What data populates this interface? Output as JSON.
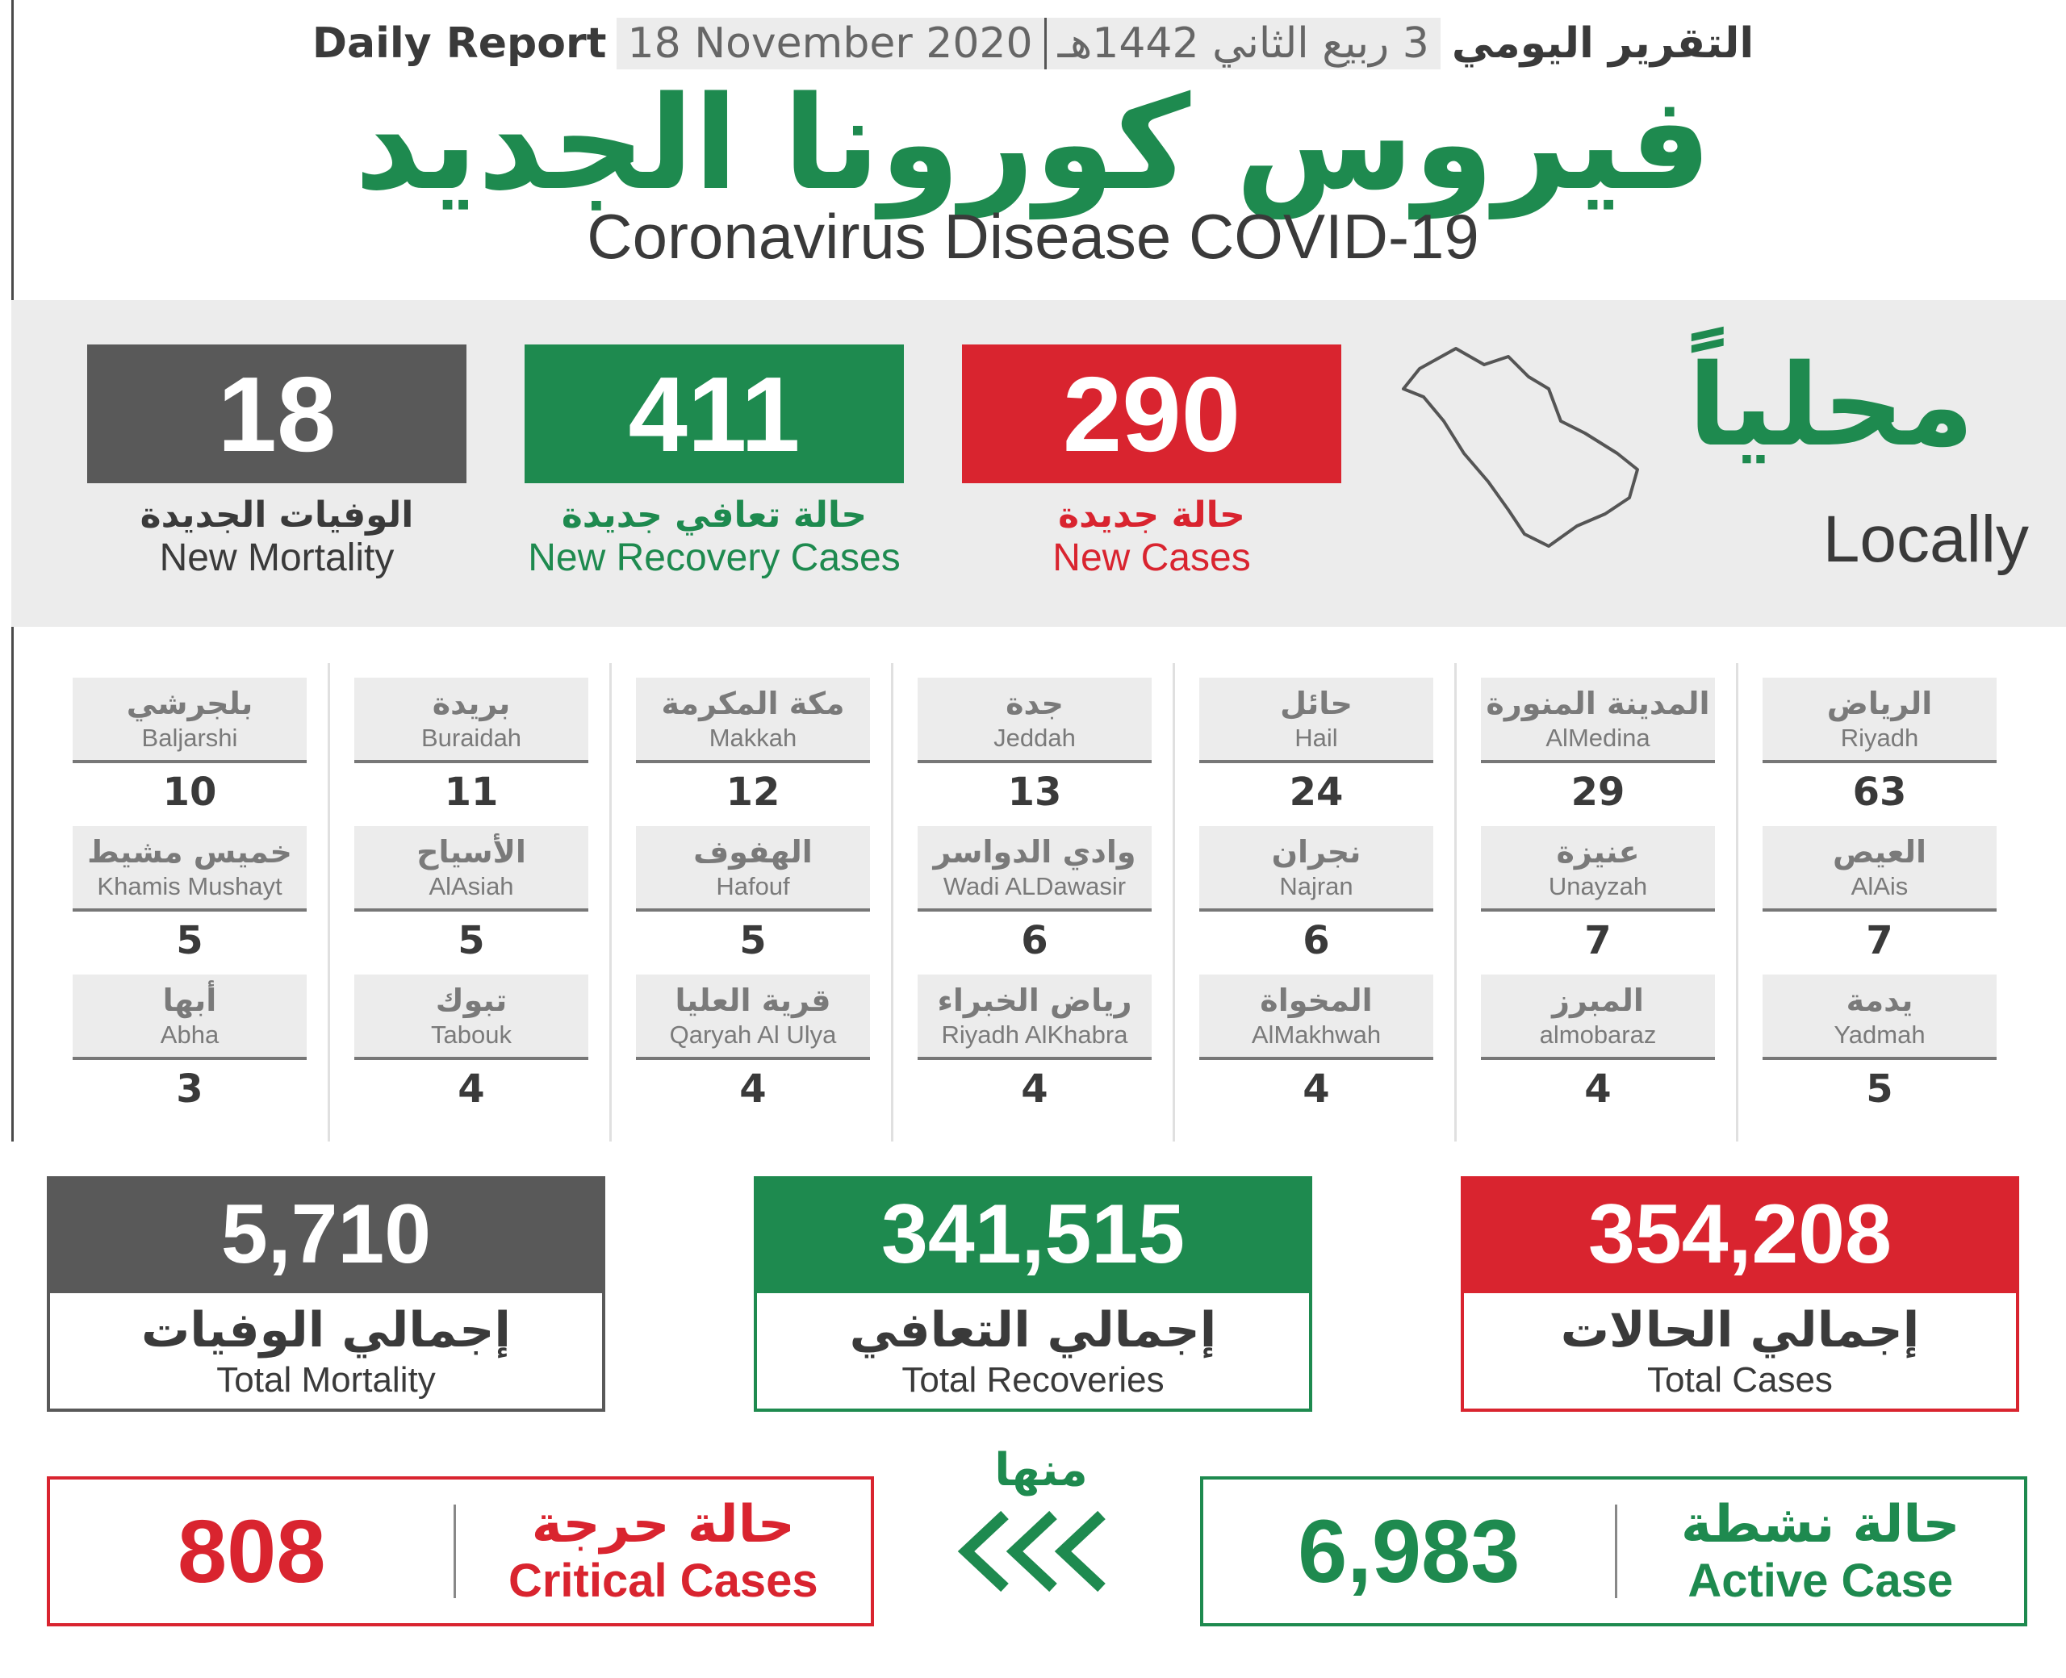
{
  "colors": {
    "red": "#d9242f",
    "green": "#1e8a4f",
    "gray": "#595959",
    "light_gray": "#ececec"
  },
  "header": {
    "english_label": "Daily Report",
    "gregorian_date": "18 November 2020",
    "hijri_date": "3 ربيع الثاني 1442هـ",
    "arabic_label": "التقرير اليومي",
    "title_ar": "فيروس كورونا الجديد",
    "title_en": "Coronavirus Disease COVID-19"
  },
  "locally": {
    "title_ar": "محلياً",
    "title_en": "Locally",
    "map_icon": "saudi-arabia-outline-icon",
    "new_cases": {
      "value": "290",
      "label_ar": "حالة جديدة",
      "label_en": "New Cases"
    },
    "new_recoveries": {
      "value": "411",
      "label_ar": "حالة تعافي جديدة",
      "label_en": "New Recovery Cases"
    },
    "new_mortality": {
      "value": "18",
      "label_ar": "الوفيات الجديدة",
      "label_en": "New Mortality"
    }
  },
  "cities": [
    [
      {
        "ar": "بلجرشي",
        "en": "Baljarshi",
        "count": "10"
      },
      {
        "ar": "خميس مشيط",
        "en": "Khamis Mushayt",
        "count": "5"
      },
      {
        "ar": "أبها",
        "en": "Abha",
        "count": "3"
      }
    ],
    [
      {
        "ar": "بريدة",
        "en": "Buraidah",
        "count": "11"
      },
      {
        "ar": "الأسياح",
        "en": "AlAsiah",
        "count": "5"
      },
      {
        "ar": "تبوك",
        "en": "Tabouk",
        "count": "4"
      }
    ],
    [
      {
        "ar": "مكة المكرمة",
        "en": "Makkah",
        "count": "12"
      },
      {
        "ar": "الهفوف",
        "en": "Hafouf",
        "count": "5"
      },
      {
        "ar": "قرية العليا",
        "en": "Qaryah Al Ulya",
        "count": "4"
      }
    ],
    [
      {
        "ar": "جدة",
        "en": "Jeddah",
        "count": "13"
      },
      {
        "ar": "وادي الدواسر",
        "en": "Wadi ALDawasir",
        "count": "6"
      },
      {
        "ar": "رياض الخبراء",
        "en": "Riyadh AlKhabra",
        "count": "4"
      }
    ],
    [
      {
        "ar": "حائل",
        "en": "Hail",
        "count": "24"
      },
      {
        "ar": "نجران",
        "en": "Najran",
        "count": "6"
      },
      {
        "ar": "المخواة",
        "en": "AlMakhwah",
        "count": "4"
      }
    ],
    [
      {
        "ar": "المدينة المنورة",
        "en": "AlMedina",
        "count": "29"
      },
      {
        "ar": "عنيزة",
        "en": "Unayzah",
        "count": "7"
      },
      {
        "ar": "المبرز",
        "en": "almobaraz",
        "count": "4"
      }
    ],
    [
      {
        "ar": "الرياض",
        "en": "Riyadh",
        "count": "63"
      },
      {
        "ar": "العيص",
        "en": "AlAis",
        "count": "7"
      },
      {
        "ar": "يدمة",
        "en": "Yadmah",
        "count": "5"
      }
    ]
  ],
  "totals": {
    "mortality": {
      "value": "5,710",
      "label_ar": "إجمالي الوفيات",
      "label_en": "Total Mortality"
    },
    "recoveries": {
      "value": "341,515",
      "label_ar": "إجمالي التعافي",
      "label_en": "Total Recoveries"
    },
    "cases": {
      "value": "354,208",
      "label_ar": "إجمالي الحالات",
      "label_en": "Total Cases"
    }
  },
  "of_which": "منها",
  "arrows_icon": "triple-chevron-left-icon",
  "critical": {
    "value": "808",
    "label_ar": "حالة حرجة",
    "label_en": "Critical Cases"
  },
  "active": {
    "value": "6,983",
    "label_ar": "حالة نشطة",
    "label_en": "Active Case"
  }
}
